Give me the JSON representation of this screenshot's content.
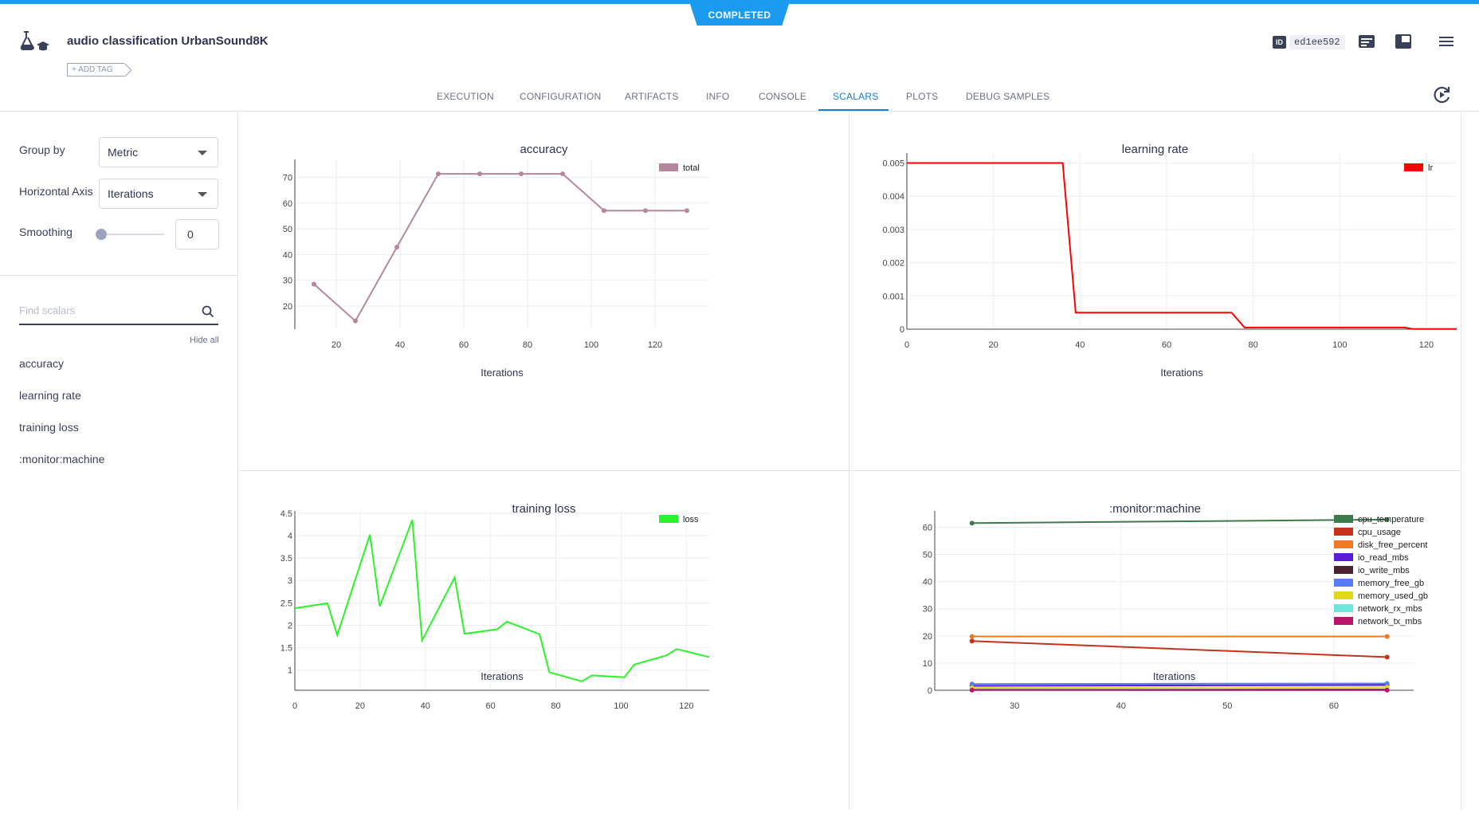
{
  "header": {
    "status": "COMPLETED",
    "title": "audio classification UrbanSound8K",
    "add_tag": "+ ADD TAG",
    "id_label": "ID",
    "id_value": "ed1ee592",
    "icons": [
      "flask-logo-icon",
      "details-icon",
      "layout-icon",
      "menu-icon"
    ]
  },
  "tabs": [
    {
      "label": "EXECUTION",
      "active": false
    },
    {
      "label": "CONFIGURATION",
      "active": false
    },
    {
      "label": "ARTIFACTS",
      "active": false
    },
    {
      "label": "INFO",
      "active": false
    },
    {
      "label": "CONSOLE",
      "active": false
    },
    {
      "label": "SCALARS",
      "active": true
    },
    {
      "label": "PLOTS",
      "active": false
    },
    {
      "label": "DEBUG SAMPLES",
      "active": false
    }
  ],
  "sidebar": {
    "group_by_label": "Group by",
    "group_by_value": "Metric",
    "horizontal_axis_label": "Horizontal Axis",
    "horizontal_axis_value": "Iterations",
    "smoothing_label": "Smoothing",
    "smoothing_value": "0",
    "smoothing_level": 0,
    "search_placeholder": "Find scalars",
    "hide_all": "Hide all",
    "metrics": [
      "accuracy",
      "learning rate",
      "training loss",
      ":monitor:machine"
    ]
  },
  "chart_data": [
    {
      "type": "line",
      "title": "accuracy",
      "xlabel": "Iterations",
      "ylabel": "",
      "xlim": [
        7,
        137
      ],
      "ylim": [
        11,
        77
      ],
      "xticks": [
        20,
        40,
        60,
        80,
        100,
        120
      ],
      "yticks": [
        20,
        30,
        40,
        50,
        60,
        70
      ],
      "legend": "top-right",
      "markers": true,
      "series": [
        {
          "name": "total",
          "color": "#b5879f",
          "x": [
            13,
            26,
            39,
            52,
            65,
            78,
            91,
            104,
            117,
            130
          ],
          "y": [
            28.5,
            14.2,
            42.9,
            71.4,
            71.4,
            71.4,
            71.4,
            57.1,
            57.1,
            57.1
          ]
        }
      ]
    },
    {
      "type": "line",
      "title": "learning rate",
      "xlabel": "Iterations",
      "ylabel": "",
      "xlim": [
        0,
        127
      ],
      "ylim": [
        0,
        0.0053
      ],
      "xticks": [
        0,
        20,
        40,
        60,
        80,
        100,
        120
      ],
      "yticks": [
        0,
        0.001,
        0.002,
        0.003,
        0.004,
        0.005
      ],
      "legend": "top-right",
      "markers": false,
      "series": [
        {
          "name": "lr",
          "color": "#ff0000",
          "x": [
            0,
            36,
            39,
            75,
            78,
            115,
            117,
            127
          ],
          "y": [
            0.005,
            0.005,
            0.0005,
            0.0005,
            5e-05,
            5e-05,
            5e-06,
            5e-06
          ]
        }
      ]
    },
    {
      "type": "line",
      "title": "training loss",
      "xlabel": "Iterations",
      "ylabel": "",
      "xlim": [
        0,
        127
      ],
      "ylim": [
        0.55,
        4.55
      ],
      "xticks": [
        0,
        20,
        40,
        60,
        80,
        100,
        120
      ],
      "yticks": [
        1,
        1.5,
        2,
        2.5,
        3,
        3.5,
        4,
        4.5
      ],
      "legend": "top-right",
      "markers": false,
      "series": [
        {
          "name": "loss",
          "color": "#2bf22b",
          "x": [
            0,
            10,
            13,
            23,
            26,
            36,
            39,
            49,
            52,
            62,
            65,
            75,
            78,
            88,
            91,
            101,
            104,
            114,
            117,
            127
          ],
          "y": [
            2.38,
            2.49,
            1.78,
            4.02,
            2.42,
            4.35,
            1.66,
            3.07,
            1.81,
            1.91,
            2.08,
            1.8,
            0.95,
            0.75,
            0.88,
            0.84,
            1.12,
            1.33,
            1.47,
            1.29
          ]
        }
      ]
    },
    {
      "type": "line",
      "title": ":monitor:machine",
      "xlabel": "Iterations",
      "ylabel": "",
      "xlim": [
        22.5,
        67.5
      ],
      "ylim": [
        0,
        66
      ],
      "xticks": [
        30,
        40,
        50,
        60
      ],
      "yticks": [
        0,
        10,
        20,
        30,
        40,
        50,
        60
      ],
      "legend": "top-right",
      "markers": true,
      "series": [
        {
          "name": "cpu_temperature",
          "color": "#3d7a4c",
          "x": [
            26,
            65
          ],
          "y": [
            61.5,
            62.8
          ]
        },
        {
          "name": "cpu_usage",
          "color": "#c8321b",
          "x": [
            26,
            65
          ],
          "y": [
            18.1,
            12.2
          ]
        },
        {
          "name": "disk_free_percent",
          "color": "#f07a21",
          "x": [
            26,
            65
          ],
          "y": [
            19.8,
            19.8
          ]
        },
        {
          "name": "io_read_mbs",
          "color": "#5c1bd6",
          "x": [
            26,
            65
          ],
          "y": [
            1.6,
            1.9
          ]
        },
        {
          "name": "io_write_mbs",
          "color": "#4b2330",
          "x": [
            26,
            65
          ],
          "y": [
            0.2,
            0.3
          ]
        },
        {
          "name": "memory_free_gb",
          "color": "#5a7cf2",
          "x": [
            26,
            65
          ],
          "y": [
            2.3,
            2.5
          ]
        },
        {
          "name": "memory_used_gb",
          "color": "#e3d81c",
          "x": [
            26,
            65
          ],
          "y": [
            0.9,
            1.1
          ]
        },
        {
          "name": "network_rx_mbs",
          "color": "#6ee6dc",
          "x": [
            26,
            65
          ],
          "y": [
            0.1,
            0.1
          ]
        },
        {
          "name": "network_tx_mbs",
          "color": "#b8166a",
          "x": [
            26,
            65
          ],
          "y": [
            0.05,
            0.05
          ]
        }
      ]
    }
  ]
}
